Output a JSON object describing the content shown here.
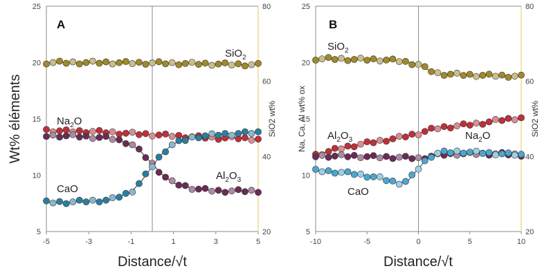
{
  "chart_data": [
    {
      "panel": "A",
      "type": "scatter",
      "xlabel": "Distance/√t",
      "ylabel": "Wt% éléments",
      "ylabel_right": "SiO2 wt%",
      "xlim": [
        -5,
        5
      ],
      "xticks": [
        "-5",
        "-3",
        "-1",
        "1",
        "3",
        "5"
      ],
      "ylim": [
        5,
        25
      ],
      "yticks": [
        "5",
        "10",
        "15",
        "20",
        "25"
      ],
      "y2lim": [
        20,
        80
      ],
      "y2ticks": [
        "20",
        "40",
        "60",
        "80"
      ],
      "interface_x": 0,
      "grid": false,
      "series": [
        {
          "name": "SiO2",
          "axis": "right",
          "color": "#a08a28",
          "x": [
            -5,
            -4,
            -3,
            -2,
            -1,
            0,
            1,
            2,
            3,
            4,
            5
          ],
          "values": [
            65.0,
            65.0,
            65.0,
            65.0,
            64.9,
            64.9,
            64.8,
            64.7,
            64.6,
            64.5,
            64.4
          ]
        },
        {
          "name": "Na2O",
          "axis": "left",
          "color": "#c0303a",
          "x": [
            -5,
            -4,
            -3,
            -2,
            -1,
            0,
            1,
            2,
            3,
            4,
            5
          ],
          "values": [
            14.0,
            13.9,
            13.9,
            13.8,
            13.7,
            13.6,
            13.5,
            13.4,
            13.3,
            13.3,
            13.2
          ]
        },
        {
          "name": "Al2O3",
          "axis": "left",
          "color": "#6a2c55",
          "x": [
            -5,
            -4,
            -3,
            -2,
            -1,
            -0.5,
            0,
            0.5,
            1,
            2,
            3,
            4,
            5
          ],
          "values": [
            13.5,
            13.5,
            13.4,
            13.3,
            12.8,
            12.0,
            11.0,
            10.0,
            9.3,
            8.8,
            8.6,
            8.6,
            8.6
          ]
        },
        {
          "name": "CaO",
          "axis": "left",
          "color": "#2a7fa0",
          "x": [
            -5,
            -4,
            -3,
            -2,
            -1,
            -0.5,
            0,
            0.5,
            1,
            2,
            3,
            4,
            5
          ],
          "values": [
            7.6,
            7.6,
            7.7,
            7.8,
            8.5,
            9.5,
            10.8,
            12.0,
            12.8,
            13.4,
            13.6,
            13.7,
            13.8
          ]
        }
      ],
      "annotations": [
        {
          "text": "SiO",
          "sub": "2"
        },
        {
          "text": "Na",
          "sub": "2",
          "after": "O"
        },
        {
          "text": "CaO"
        },
        {
          "text": "Al",
          "sub": "2",
          "after": "O",
          "sub2": "3"
        }
      ]
    },
    {
      "panel": "B",
      "type": "scatter",
      "xlabel": "Distance/√t",
      "ylabel": "Na, Ca, Al wt% ox",
      "ylabel_right": "SiO2 wt%",
      "xlim": [
        -10,
        10
      ],
      "xticks": [
        "-10",
        "-5",
        "0",
        "5",
        "10"
      ],
      "ylim": [
        5,
        25
      ],
      "yticks": [
        "5",
        "10",
        "15",
        "20",
        "25"
      ],
      "y2lim": [
        20,
        80
      ],
      "y2ticks": [
        "20",
        "40",
        "60",
        "80"
      ],
      "interface_x": 0,
      "grid": false,
      "series": [
        {
          "name": "SiO2",
          "axis": "right",
          "color": "#a08a28",
          "x": [
            -10,
            -8,
            -6,
            -4,
            -2,
            0,
            1,
            2,
            4,
            6,
            8,
            10
          ],
          "values": [
            66.0,
            66.0,
            65.8,
            65.8,
            65.5,
            64.5,
            63.0,
            62.0,
            61.8,
            61.6,
            61.5,
            61.3
          ]
        },
        {
          "name": "Na2O",
          "axis": "left",
          "color": "#c0303a",
          "x": [
            -10,
            -8,
            -6,
            -4,
            -2,
            0,
            1,
            2,
            4,
            6,
            8,
            10
          ],
          "values": [
            11.8,
            12.3,
            12.7,
            13.0,
            13.3,
            13.7,
            14.0,
            14.2,
            14.4,
            14.6,
            14.9,
            15.1
          ]
        },
        {
          "name": "Al2O3",
          "axis": "left",
          "color": "#6a2c55",
          "x": [
            -10,
            -8,
            -6,
            -4,
            -2,
            0,
            2,
            4,
            6,
            8,
            10
          ],
          "values": [
            11.7,
            11.7,
            11.7,
            11.6,
            11.6,
            11.5,
            11.8,
            11.9,
            11.9,
            11.9,
            11.8
          ]
        },
        {
          "name": "CaO",
          "axis": "left",
          "color": "#4aa8d0",
          "x": [
            -10,
            -8,
            -6,
            -4,
            -2,
            -1,
            0,
            1,
            2,
            4,
            6,
            8,
            10
          ],
          "values": [
            10.4,
            10.3,
            10.1,
            9.8,
            9.3,
            9.5,
            10.6,
            11.6,
            12.0,
            12.1,
            12.0,
            11.9,
            11.8
          ]
        }
      ],
      "annotations": [
        {
          "text": "SiO",
          "sub": "2"
        },
        {
          "text": "Al",
          "sub": "2",
          "after": "O",
          "sub2": "3"
        },
        {
          "text": "Na",
          "sub": "2",
          "after": "O"
        },
        {
          "text": "CaO"
        }
      ]
    }
  ]
}
